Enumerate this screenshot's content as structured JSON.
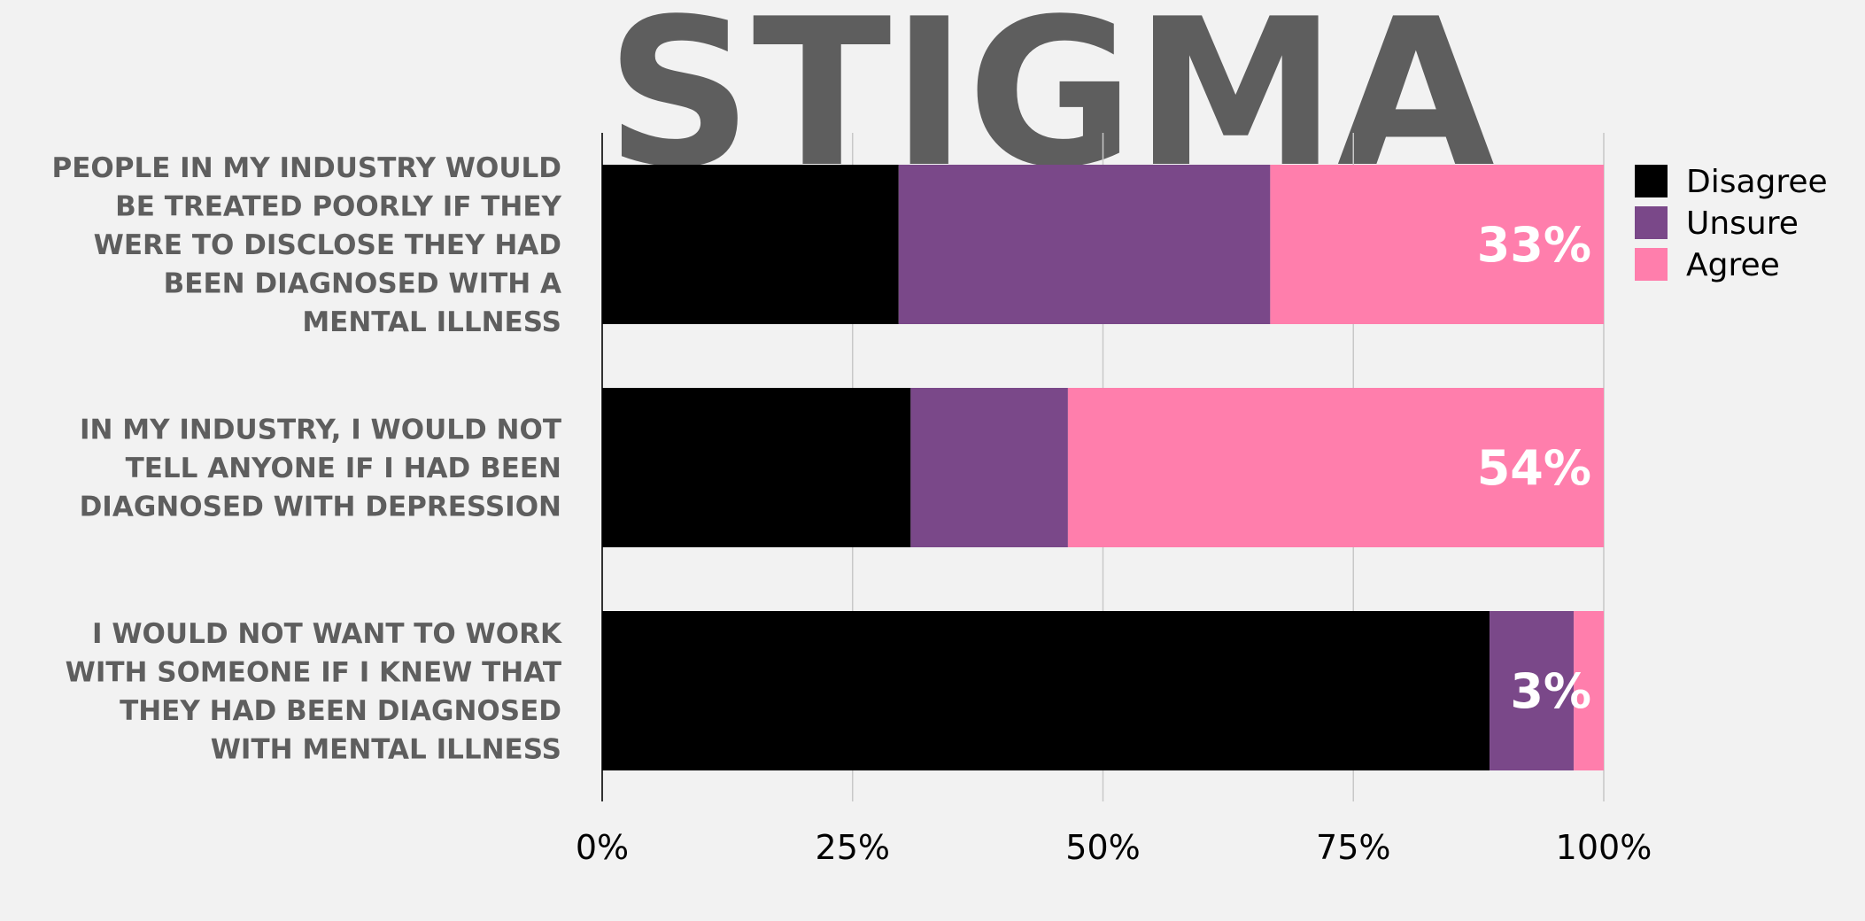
{
  "chart_data": {
    "type": "bar",
    "orientation": "horizontal",
    "stacked": true,
    "percent": true,
    "title": "STIGMA",
    "categories": [
      [
        "PEOPLE IN MY INDUSTRY WOULD",
        "BE TREATED POORLY IF THEY",
        "WERE TO DISCLOSE THEY HAD",
        "BEEN DIAGNOSED WITH A",
        "MENTAL ILLNESS"
      ],
      [
        "IN MY INDUSTRY, I WOULD NOT",
        "TELL ANYONE IF I HAD BEEN",
        "DIAGNOSED WITH DEPRESSION"
      ],
      [
        "I WOULD NOT WANT TO WORK",
        "WITH SOMEONE IF I KNEW THAT",
        "THEY HAD BEEN DIAGNOSED",
        "WITH MENTAL ILLNESS"
      ]
    ],
    "series": [
      {
        "name": "Disagree",
        "color": "#000000",
        "values": [
          29.6,
          30.8,
          88.6
        ]
      },
      {
        "name": "Unsure",
        "color": "#7a4889",
        "values": [
          37.1,
          15.7,
          8.4
        ]
      },
      {
        "name": "Agree",
        "color": "#ff7eac",
        "values": [
          33.3,
          53.5,
          3.0
        ]
      }
    ],
    "data_labels": [
      "33%",
      "54%",
      "3%"
    ],
    "xlim": [
      0,
      100
    ],
    "x_ticks": [
      "0%",
      "25%",
      "50%",
      "75%",
      "100%"
    ],
    "grid": true,
    "legend_position": "top-right"
  }
}
